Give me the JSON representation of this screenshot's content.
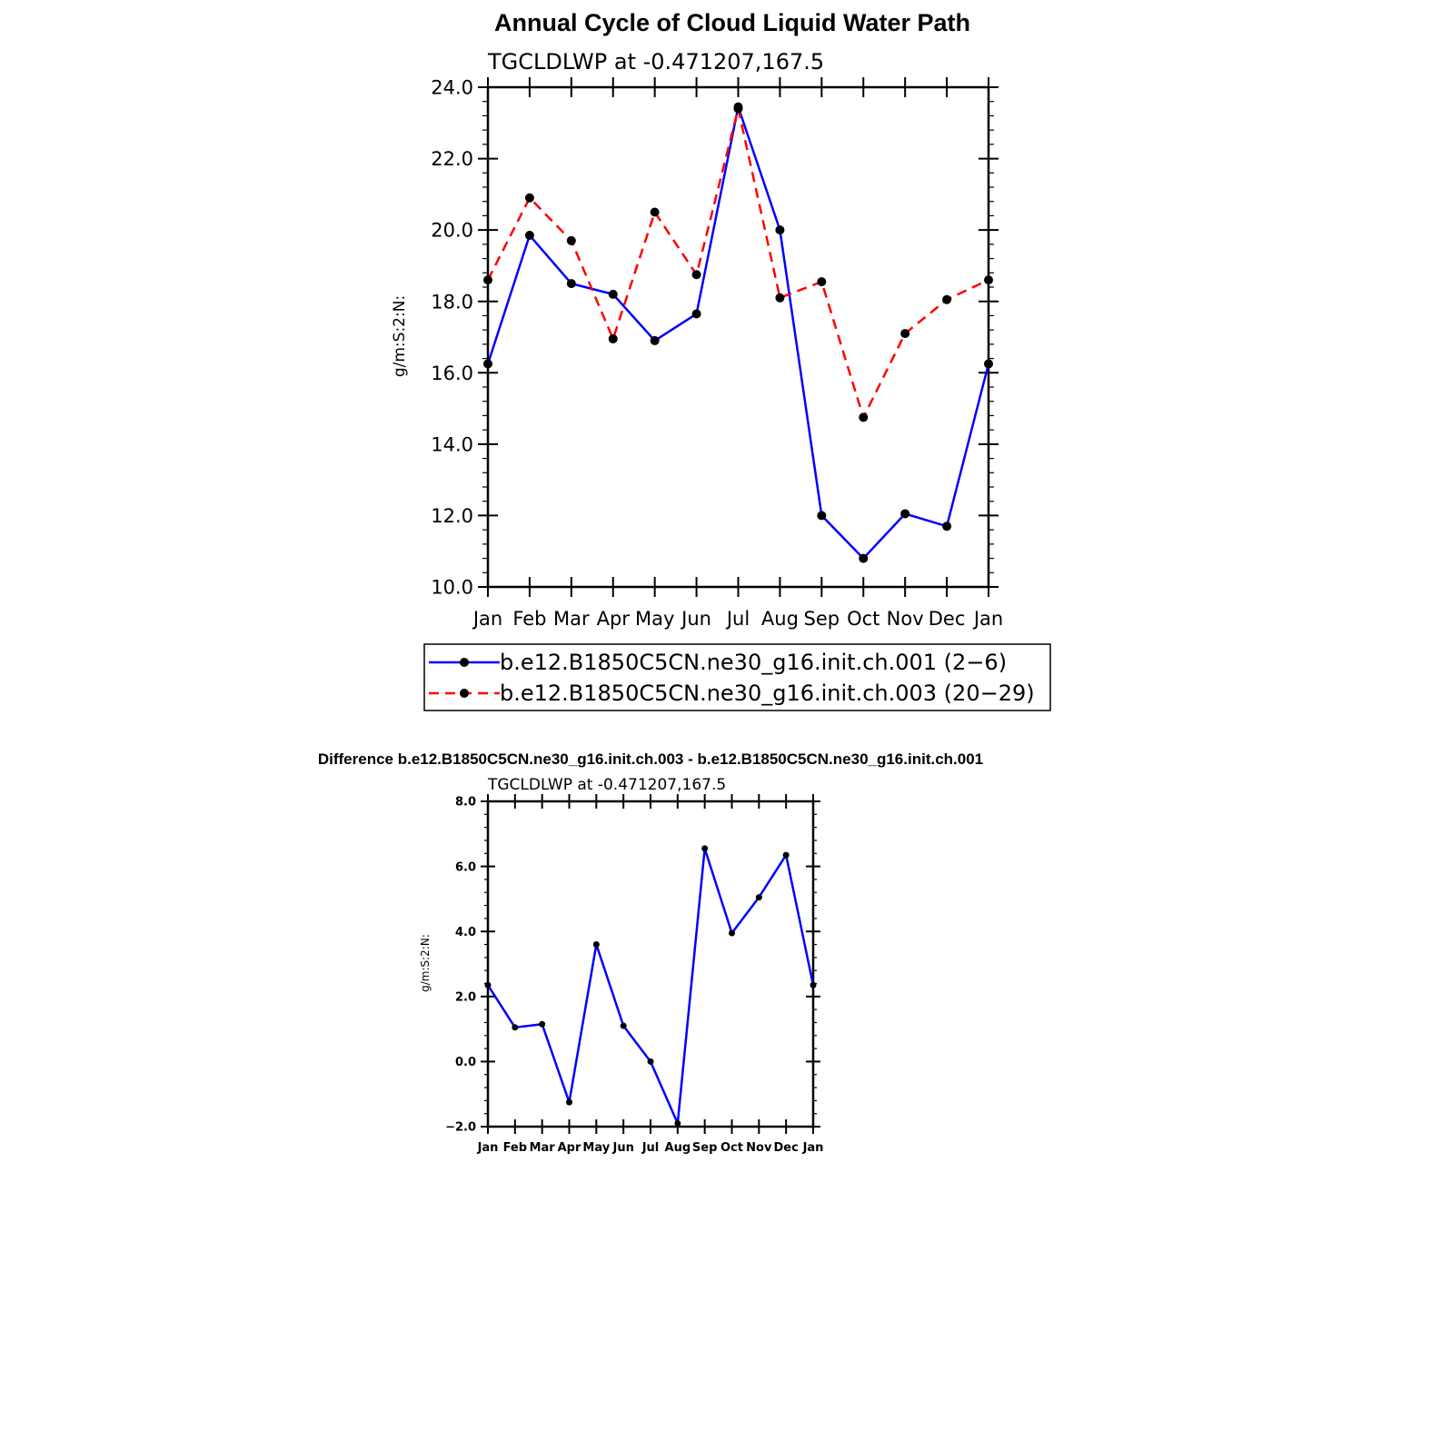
{
  "title": "Annual Cycle of Cloud Liquid Water Path",
  "diff_title": "Difference b.e12.B1850C5CN.ne30_g16.init.ch.003 - b.e12.B1850C5CN.ne30_g16.init.ch.001",
  "colors": {
    "series1": "#0000ff",
    "series2": "#ff0000",
    "marker": "#000000",
    "axis": "#000000"
  },
  "chart_data": [
    {
      "type": "line",
      "subtitle": "TGCLDLWP at -0.471207,167.5",
      "ylabel": "g/m:S:2:N:",
      "xlabel": "",
      "categories": [
        "Jan",
        "Feb",
        "Mar",
        "Apr",
        "May",
        "Jun",
        "Jul",
        "Aug",
        "Sep",
        "Oct",
        "Nov",
        "Dec",
        "Jan"
      ],
      "ylim": [
        10.0,
        24.0
      ],
      "yticks": [
        10.0,
        12.0,
        14.0,
        16.0,
        18.0,
        20.0,
        22.0,
        24.0
      ],
      "ytick_labels": [
        "10.0",
        "12.0",
        "14.0",
        "16.0",
        "18.0",
        "20.0",
        "22.0",
        "24.0"
      ],
      "grid": false,
      "legend_position": "below",
      "series": [
        {
          "name": "b.e12.B1850C5CN.ne30_g16.init.ch.001 (2−6)",
          "style": "solid",
          "color": "#0000ff",
          "values": [
            16.25,
            19.85,
            18.5,
            18.2,
            16.9,
            17.65,
            23.45,
            20.0,
            12.0,
            10.8,
            12.05,
            11.7,
            16.25
          ]
        },
        {
          "name": "b.e12.B1850C5CN.ne30_g16.init.ch.003 (20−29)",
          "style": "dashed",
          "color": "#ff0000",
          "values": [
            18.6,
            20.9,
            19.7,
            16.95,
            20.5,
            18.75,
            23.4,
            18.1,
            18.55,
            14.75,
            17.1,
            18.05,
            18.6
          ]
        }
      ]
    },
    {
      "type": "line",
      "subtitle": "TGCLDLWP at -0.471207,167.5",
      "ylabel": "g/m:S:2:N:",
      "xlabel": "",
      "categories": [
        "Jan",
        "Feb",
        "Mar",
        "Apr",
        "May",
        "Jun",
        "Jul",
        "Aug",
        "Sep",
        "Oct",
        "Nov",
        "Dec",
        "Jan"
      ],
      "ylim": [
        -2.0,
        8.0
      ],
      "yticks": [
        -2.0,
        0.0,
        2.0,
        4.0,
        6.0,
        8.0
      ],
      "ytick_labels": [
        "−2.0",
        "0.0",
        "2.0",
        "4.0",
        "6.0",
        "8.0"
      ],
      "grid": false,
      "series": [
        {
          "style": "solid",
          "color": "#0000ff",
          "values": [
            2.35,
            1.05,
            1.15,
            -1.25,
            3.6,
            1.1,
            0.0,
            -1.9,
            6.55,
            3.95,
            5.05,
            6.35,
            2.35
          ]
        }
      ]
    }
  ]
}
